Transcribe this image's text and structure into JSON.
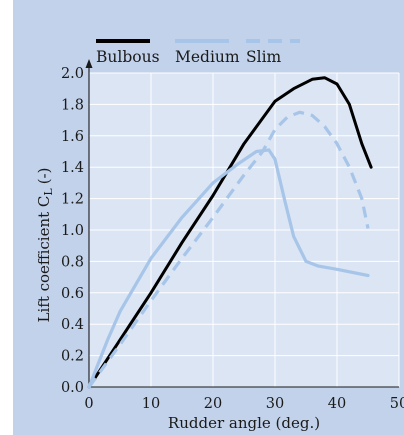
{
  "chart_data": {
    "type": "line",
    "xlabel": "Rudder angle (deg.)",
    "ylabel": "Lift coefficient C",
    "ylabel_subscript": "L",
    "ylabel_unit": "(-)",
    "xlim": [
      0,
      50
    ],
    "ylim": [
      0,
      2.0
    ],
    "xticks": [
      0,
      10,
      20,
      30,
      40,
      50
    ],
    "xtick_labels": [
      "0",
      "10",
      "20",
      "30",
      "40",
      "50"
    ],
    "yticks": [
      0,
      0.2,
      0.4,
      0.6,
      0.8,
      1.0,
      1.2,
      1.4,
      1.6,
      1.8,
      2.0
    ],
    "ytick_labels": [
      "0.0",
      "0.2",
      "0.4",
      "0.6",
      "0.8",
      "1.0",
      "1.2",
      "1.4",
      "1.6",
      "1.8",
      "2.0"
    ],
    "grid": true,
    "legend_position": "top",
    "series": [
      {
        "name": "Bulbous",
        "color": "#000000",
        "style": "solid",
        "points": [
          [
            0,
            0
          ],
          [
            5,
            0.3
          ],
          [
            10,
            0.6
          ],
          [
            15,
            0.92
          ],
          [
            20,
            1.22
          ],
          [
            25,
            1.55
          ],
          [
            30,
            1.82
          ],
          [
            33,
            1.9
          ],
          [
            36,
            1.96
          ],
          [
            38,
            1.97
          ],
          [
            40,
            1.93
          ],
          [
            42,
            1.8
          ],
          [
            44,
            1.55
          ],
          [
            45.5,
            1.4
          ]
        ]
      },
      {
        "name": "Medium",
        "color": "#a7c5e8",
        "style": "solid",
        "points": [
          [
            0,
            0
          ],
          [
            3,
            0.3
          ],
          [
            5,
            0.48
          ],
          [
            10,
            0.82
          ],
          [
            15,
            1.08
          ],
          [
            20,
            1.3
          ],
          [
            24,
            1.42
          ],
          [
            27,
            1.5
          ],
          [
            29,
            1.51
          ],
          [
            30,
            1.45
          ],
          [
            31.5,
            1.2
          ],
          [
            33,
            0.96
          ],
          [
            35,
            0.8
          ],
          [
            37,
            0.77
          ],
          [
            40,
            0.75
          ],
          [
            45,
            0.71
          ]
        ]
      },
      {
        "name": "Slim",
        "color": "#a7c5e8",
        "style": "dashed",
        "points": [
          [
            0,
            0
          ],
          [
            5,
            0.27
          ],
          [
            10,
            0.55
          ],
          [
            15,
            0.82
          ],
          [
            20,
            1.08
          ],
          [
            25,
            1.35
          ],
          [
            28,
            1.5
          ],
          [
            30,
            1.64
          ],
          [
            32,
            1.72
          ],
          [
            34,
            1.75
          ],
          [
            36,
            1.73
          ],
          [
            38,
            1.66
          ],
          [
            40,
            1.55
          ],
          [
            42,
            1.4
          ],
          [
            44,
            1.2
          ],
          [
            45,
            1.01
          ]
        ]
      }
    ]
  }
}
